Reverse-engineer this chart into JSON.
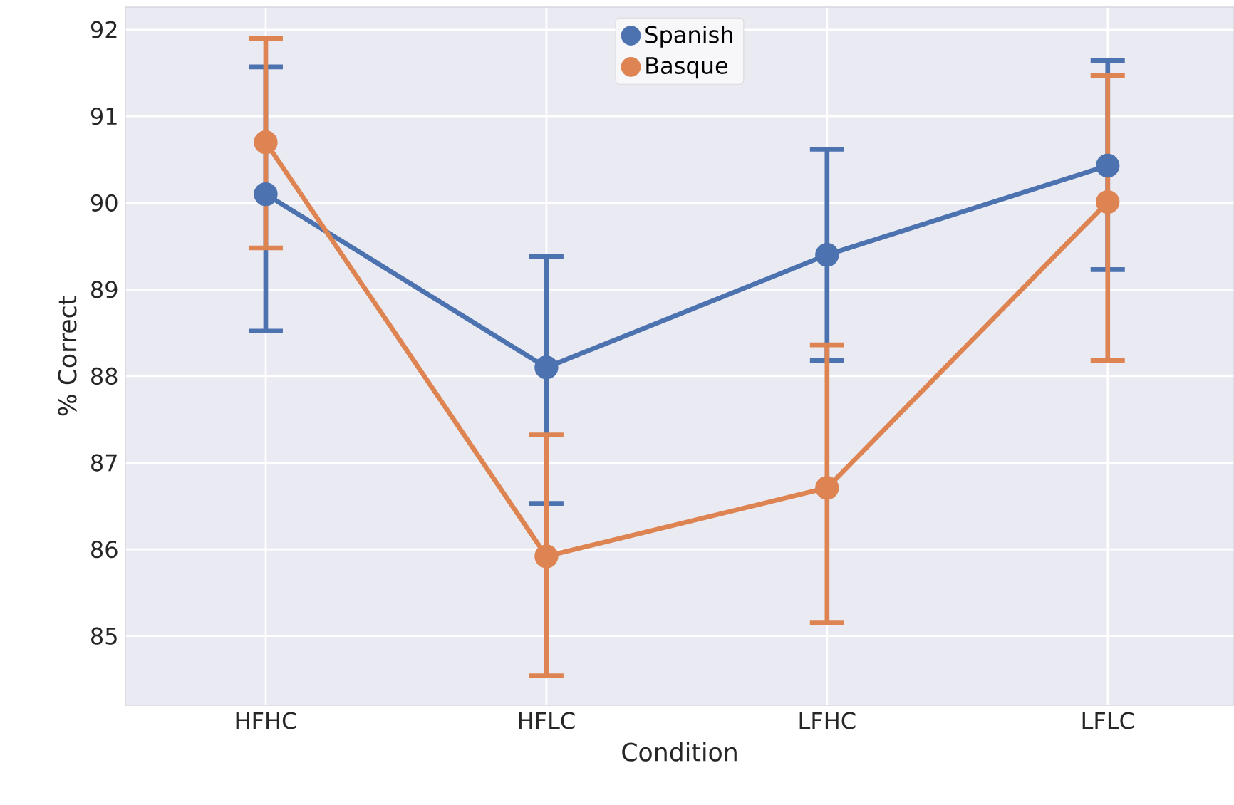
{
  "chart_data": {
    "type": "line",
    "xlabel": "Condition",
    "ylabel": "% Correct",
    "categories": [
      "HFHC",
      "HFLC",
      "LFHC",
      "LFLC"
    ],
    "series": [
      {
        "name": "Spanish",
        "color": "#4c72b0",
        "values": [
          90.1,
          88.1,
          89.4,
          90.43
        ],
        "errors": [
          [
            88.52,
            91.57
          ],
          [
            86.53,
            89.38
          ],
          [
            88.18,
            90.62
          ],
          [
            89.23,
            91.64
          ]
        ]
      },
      {
        "name": "Basque",
        "color": "#dd8452",
        "values": [
          90.7,
          85.92,
          86.71,
          90.01
        ],
        "errors": [
          [
            89.48,
            91.9
          ],
          [
            84.54,
            87.32
          ],
          [
            85.15,
            88.36
          ],
          [
            88.18,
            91.47
          ]
        ]
      }
    ],
    "ylim": [
      84.2,
      92.26
    ],
    "yticks": [
      85,
      86,
      87,
      88,
      89,
      90,
      91,
      92
    ],
    "grid": true,
    "legend": "top",
    "marker": "circle",
    "line_style": "solid"
  }
}
